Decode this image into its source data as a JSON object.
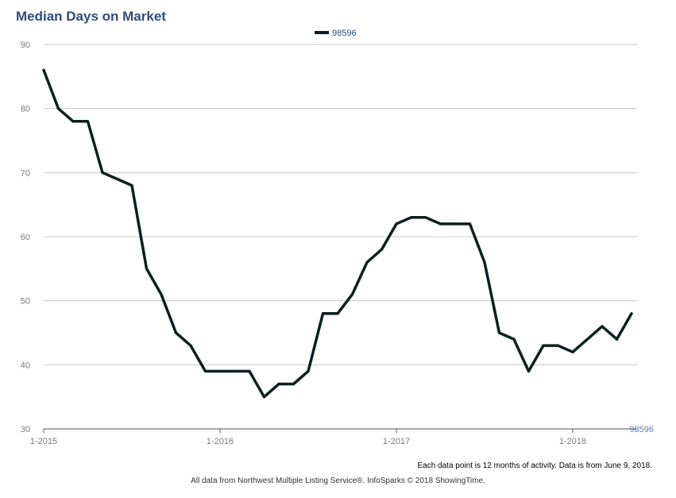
{
  "title": "Median Days on Market",
  "legend_label": "98596",
  "corner_label": "98596",
  "note": "Each data point is 12 months of activity. Data is from June 9, 2018.",
  "source": "All data from Northwest Multiple Listing Service®. InfoSparks © 2018 ShowingTime.",
  "colors": {
    "line": "#0d1f1f",
    "grid": "#c8c8c8",
    "title": "#2b4c7e"
  },
  "chart_data": {
    "type": "line",
    "title": "Median Days on Market",
    "ylim": [
      30,
      90
    ],
    "yticks": [
      30,
      40,
      50,
      60,
      70,
      80,
      90
    ],
    "grid": true,
    "legend": "top-center",
    "xticks": [
      {
        "label": "1-2015",
        "index": 0
      },
      {
        "label": "1-2016",
        "index": 12
      },
      {
        "label": "1-2017",
        "index": 24
      },
      {
        "label": "1-2018",
        "index": 36
      }
    ],
    "series": [
      {
        "name": "98596",
        "start": "1-2015",
        "interval": "month",
        "values": [
          86,
          80,
          78,
          78,
          70,
          69,
          68,
          55,
          51,
          45,
          43,
          39,
          39,
          39,
          39,
          35,
          37,
          37,
          39,
          48,
          48,
          51,
          56,
          58,
          62,
          63,
          63,
          62,
          62,
          62,
          56,
          45,
          44,
          39,
          43,
          43,
          42,
          44,
          46,
          44,
          48
        ]
      }
    ]
  }
}
